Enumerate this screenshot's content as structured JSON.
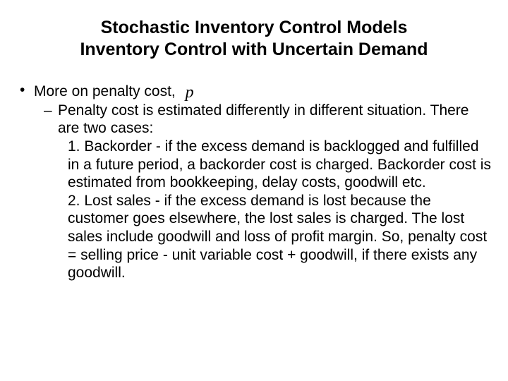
{
  "title_line1": "Stochastic Inventory Control Models",
  "title_line2": "Inventory Control with Uncertain Demand",
  "bullet1_prefix": "More on penalty cost, ",
  "p_symbol": "p",
  "sub1": "Penalty cost is estimated differently in different situation. There are two cases:",
  "item1": "1. Backorder - if the excess demand is backlogged and fulfilled in a future period, a backorder cost is charged. Backorder cost is estimated from bookkeeping, delay costs, goodwill etc.",
  "item2": "2. Lost sales - if the excess demand is lost because the customer goes elsewhere, the lost sales is charged. The lost sales include goodwill and loss of profit margin. So, penalty cost = selling price - unit variable cost + goodwill, if there exists any goodwill."
}
